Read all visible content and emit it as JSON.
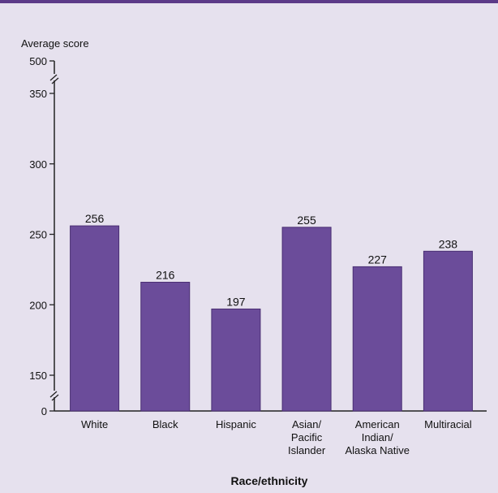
{
  "chart_data": {
    "type": "bar",
    "title": "",
    "ylabel": "Average score",
    "xlabel": "Race/ethnicity",
    "categories": [
      [
        "White"
      ],
      [
        "Black"
      ],
      [
        "Hispanic"
      ],
      [
        "Asian/",
        "Pacific",
        "Islander"
      ],
      [
        "American",
        "Indian/",
        "Alaska Native"
      ],
      [
        "Multiracial"
      ]
    ],
    "values": [
      256,
      216,
      197,
      255,
      227,
      238
    ],
    "y_ticks": [
      0,
      150,
      200,
      250,
      300,
      350,
      500
    ],
    "ylim": [
      150,
      350
    ],
    "axis_breaks": [
      "0-150",
      "350-500"
    ],
    "grid": false,
    "bar_color": "#6b4c9a",
    "bar_edge_color": "#4a2f73"
  },
  "colors": {
    "background": "#e6e1ee",
    "accent_rule": "#5c3a88"
  }
}
